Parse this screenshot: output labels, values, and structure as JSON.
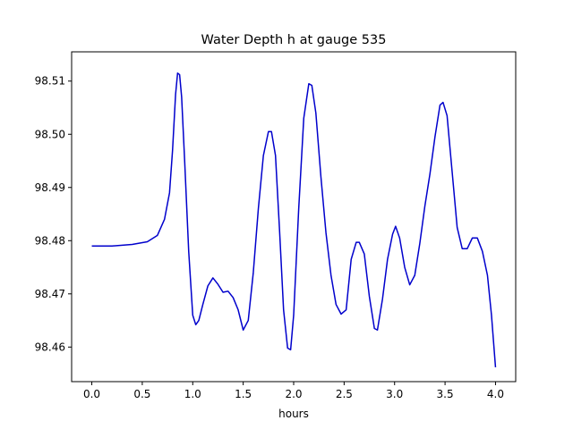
{
  "chart_data": {
    "type": "line",
    "title": "Water Depth h at gauge 535",
    "xlabel": "hours",
    "ylabel": "",
    "xlim": [
      -0.2,
      4.2
    ],
    "ylim": [
      98.4535,
      98.5155
    ],
    "x_ticks": [
      0.0,
      0.5,
      1.0,
      1.5,
      2.0,
      2.5,
      3.0,
      3.5,
      4.0
    ],
    "x_tick_labels": [
      "0.0",
      "0.5",
      "1.0",
      "1.5",
      "2.0",
      "2.5",
      "3.0",
      "3.5",
      "4.0"
    ],
    "y_ticks": [
      98.46,
      98.47,
      98.48,
      98.49,
      98.5,
      98.51
    ],
    "y_tick_labels": [
      "98.46",
      "98.47",
      "98.48",
      "98.49",
      "98.50",
      "98.51"
    ],
    "grid": false,
    "legend": "none",
    "series": [
      {
        "color": "#0000cc",
        "x": [
          0.0,
          0.2,
          0.4,
          0.55,
          0.65,
          0.72,
          0.77,
          0.8,
          0.83,
          0.85,
          0.87,
          0.89,
          0.92,
          0.96,
          1.0,
          1.03,
          1.06,
          1.1,
          1.15,
          1.2,
          1.25,
          1.3,
          1.35,
          1.4,
          1.45,
          1.5,
          1.55,
          1.6,
          1.65,
          1.7,
          1.75,
          1.78,
          1.82,
          1.86,
          1.9,
          1.94,
          1.97,
          2.0,
          2.05,
          2.1,
          2.15,
          2.18,
          2.22,
          2.27,
          2.32,
          2.37,
          2.42,
          2.47,
          2.52,
          2.57,
          2.62,
          2.65,
          2.7,
          2.75,
          2.8,
          2.83,
          2.88,
          2.93,
          2.98,
          3.01,
          3.05,
          3.1,
          3.15,
          3.2,
          3.25,
          3.3,
          3.35,
          3.4,
          3.45,
          3.48,
          3.52,
          3.57,
          3.62,
          3.67,
          3.72,
          3.77,
          3.82,
          3.87,
          3.92,
          3.96,
          4.0
        ],
        "y": [
          98.479,
          98.479,
          98.4793,
          98.4798,
          98.481,
          98.484,
          98.489,
          98.497,
          98.5075,
          98.5115,
          98.5112,
          98.507,
          98.495,
          98.478,
          98.466,
          98.4642,
          98.465,
          98.468,
          98.4715,
          98.473,
          98.4718,
          98.4703,
          98.4705,
          98.4693,
          98.467,
          98.4632,
          98.465,
          98.474,
          98.486,
          98.496,
          98.5005,
          98.5005,
          98.496,
          98.482,
          98.467,
          98.4598,
          98.4595,
          98.466,
          98.486,
          98.503,
          98.5095,
          98.5092,
          98.504,
          98.492,
          98.4815,
          98.4735,
          98.468,
          98.4662,
          98.467,
          98.4765,
          98.4797,
          98.4797,
          98.4775,
          98.4695,
          98.4635,
          98.4632,
          98.469,
          98.4765,
          98.4812,
          98.4827,
          98.4805,
          98.475,
          98.4717,
          98.4735,
          98.4795,
          98.4865,
          98.4925,
          98.4995,
          98.5055,
          98.506,
          98.5035,
          98.493,
          98.4825,
          98.4785,
          98.4785,
          98.4805,
          98.4805,
          98.478,
          98.4735,
          98.466,
          98.4562
        ]
      }
    ]
  }
}
